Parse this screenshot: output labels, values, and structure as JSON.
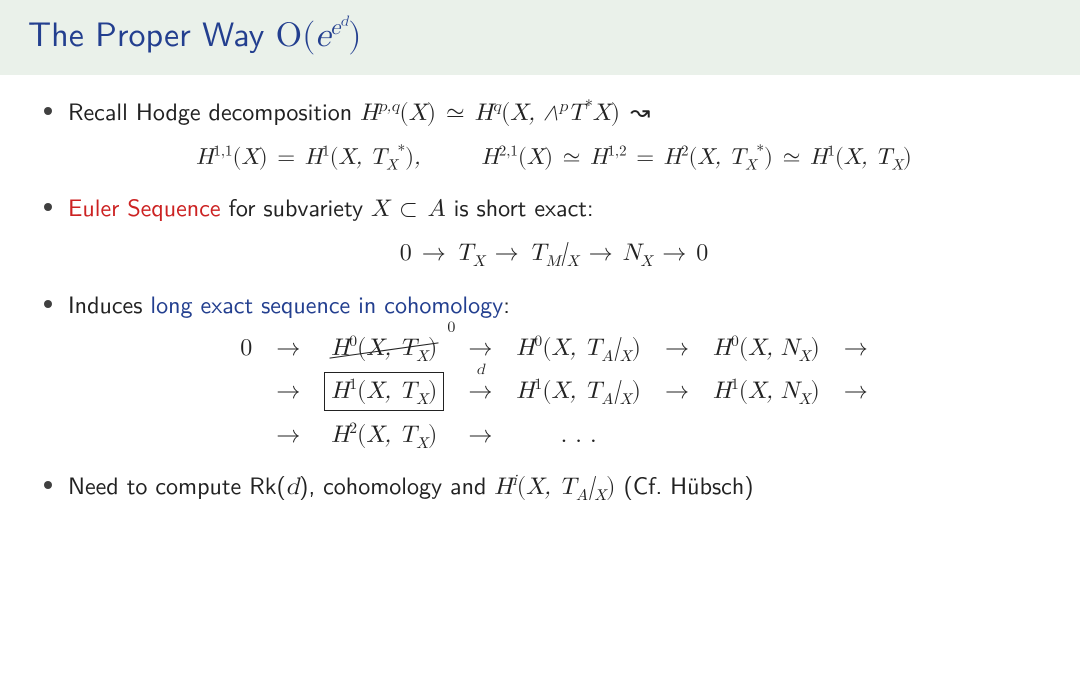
{
  "colors": {
    "title_bg": "#eaf1ea",
    "title_text": "#233f8f",
    "body_text": "#222222",
    "accent_red": "#cc2222",
    "accent_blue": "#233f8f",
    "bullet": "#404040",
    "background": "#ffffff"
  },
  "typography": {
    "title_fontsize": 34,
    "body_fontsize": 24,
    "eq_fontsize": 24,
    "sans_family": "Latin Modern Sans",
    "math_family": "Latin Modern Math"
  },
  "title": {
    "prefix": "The Proper Way ",
    "big_o": "O",
    "open_paren": "(",
    "base": "e",
    "exp1": "e",
    "exp2": "d",
    "close_paren": ")"
  },
  "bullets": {
    "b1_pre": "Recall Hodge decomposition ",
    "b1_math": "H^{p,q}(X) ≃ H^{q}(X, ∧^{p}T^{*}X) ↝",
    "eq1_left": "H^{1,1}(X) = H^{1}(X, T_X^*),",
    "eq1_right": "H^{2,1}(X) ≃ H^{1,2} = H^{2}(X, T_X^*) ≃ H^{1}(X, T_X)",
    "b2_red": "Euler Sequence",
    "b2_rest": " for subvariety X ⊂ A is short exact:",
    "eq2": "0 → T_X → T_M|_X → N_X → 0",
    "b3_pre": "Induces ",
    "b3_blue": "long exact sequence in cohomology",
    "b3_post": ":",
    "b4_pre": "Need to compute ",
    "b4_rk": "Rk(d)",
    "b4_mid": ", cohomology and ",
    "b4_hi": "H^{i}(X, T_A|_X)",
    "b4_post": " (Cf. Hübsch)"
  },
  "long_exact": {
    "row1": {
      "c1": "0",
      "arr1": "→",
      "c2": "H^{0}(X, T_X)",
      "c2_annot": "0",
      "arr2": "→",
      "c3": "H^{0}(X, T_A|_X)",
      "arr3": "→",
      "c4": "H^{0}(X, N_X)",
      "arr4": "→"
    },
    "row2": {
      "c1": "",
      "arr1": "→",
      "c2": "H^{1}(X, T_X)",
      "arr2": "→",
      "arr2_label": "d",
      "c3": "H^{1}(X, T_A|_X)",
      "arr3": "→",
      "c4": "H^{1}(X, N_X)",
      "arr4": "→"
    },
    "row3": {
      "c1": "",
      "arr1": "→",
      "c2": "H^{2}(X, T_X)",
      "arr2": "→",
      "c3": ". . .",
      "arr3": "",
      "c4": "",
      "arr4": ""
    }
  }
}
